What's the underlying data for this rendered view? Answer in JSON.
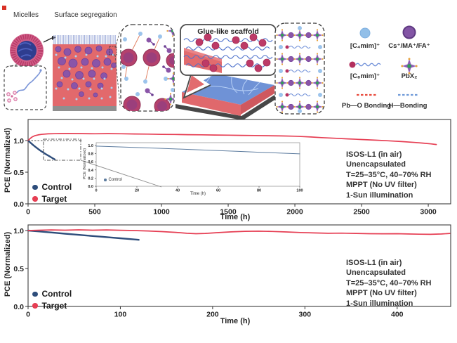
{
  "schematic": {
    "micelles_label": "Micelles",
    "surface_label": "Surface segregation",
    "scaffold_label": "Glue-like scaffold",
    "legend": [
      {
        "icon": "c4mim-icon",
        "label": "[C₄mim]⁺"
      },
      {
        "icon": "cation-icon",
        "label": "Cs⁺/MA⁺/FA⁺"
      },
      {
        "icon": "c8mim-icon",
        "label": "[C₈mim]⁺"
      },
      {
        "icon": "pbx2-icon",
        "label": "PbX₂"
      },
      {
        "icon": "pb-o-bond-icon",
        "label": "Pb—O Bonding"
      },
      {
        "icon": "h-bond-icon",
        "label": "H—Bonding"
      }
    ],
    "colors": {
      "c4mim": "#92bfe8",
      "cation": "#8355a5",
      "c8mim": "#b3305e",
      "pbo_bond": "#e8483a",
      "h_bond": "#6f9ad8",
      "film_red": "#e2696c",
      "scaffold_wave": "#5073cc",
      "perovskite_blue": "#6f92d6"
    }
  },
  "chart_data": [
    {
      "id": "main-stability",
      "type": "line",
      "xlabel": "Time (h)",
      "ylabel": "PCE (Normalized)",
      "xlim": [
        0,
        3168
      ],
      "ylim": [
        0,
        1.333
      ],
      "xticks": [
        0,
        500,
        1000,
        1500,
        2000,
        2500,
        3000
      ],
      "yticks": [
        0,
        0.5,
        1.0
      ],
      "grid": false,
      "legend_position": "lower left",
      "annotation": [
        "ISOS-L1 (in air)",
        "Unencapsulated",
        "T=25–35°C, 40–70% RH",
        "MPPT (No UV filter)",
        "1-Sun illumination"
      ],
      "series": [
        {
          "name": "Control",
          "color": "#2e4d7b",
          "width": 2.4,
          "x": [
            0,
            20,
            40,
            60,
            80,
            100,
            120,
            140,
            160,
            180,
            200
          ],
          "y": [
            1.0,
            0.962,
            0.925,
            0.892,
            0.86,
            0.83,
            0.802,
            0.776,
            0.752,
            0.727,
            0.702
          ]
        },
        {
          "name": "Target",
          "color": "#e63e53",
          "width": 1.7,
          "x": [
            0,
            15,
            30,
            50,
            75,
            100,
            150,
            200,
            250,
            300,
            400,
            500,
            600,
            700,
            800,
            900,
            1000,
            1100,
            1200,
            1300,
            1400,
            1500,
            1600,
            1700,
            1800,
            1900,
            2000,
            2060,
            2120,
            2200,
            2300,
            2400,
            2500,
            2600,
            2700,
            2800,
            2900,
            2960,
            3020,
            3060
          ],
          "y": [
            1.0,
            1.032,
            1.056,
            1.076,
            1.09,
            1.098,
            1.106,
            1.109,
            1.111,
            1.112,
            1.11,
            1.108,
            1.11,
            1.107,
            1.104,
            1.102,
            1.098,
            1.096,
            1.093,
            1.091,
            1.088,
            1.085,
            1.082,
            1.08,
            1.076,
            1.073,
            1.069,
            1.063,
            1.056,
            1.046,
            1.036,
            1.026,
            1.016,
            1.006,
            0.996,
            0.984,
            0.97,
            0.96,
            0.948,
            0.938
          ]
        }
      ]
    },
    {
      "id": "inset-control-zoom",
      "type": "line",
      "xlabel": "Time (h)",
      "ylabel": "PCE (Normalized)",
      "xlim": [
        0,
        100
      ],
      "ylim": [
        0,
        1.069
      ],
      "xticks": [
        0,
        20,
        40,
        60,
        80,
        100
      ],
      "yticks": [
        0,
        0.2,
        0.4,
        0.6,
        0.8,
        1.0
      ],
      "grid": false,
      "legend_position": "lower left",
      "series": [
        {
          "name": "Control",
          "color": "#5c7b9e",
          "width": 1,
          "x": [
            0,
            10,
            20,
            30,
            40,
            50,
            60,
            70,
            80,
            90,
            100
          ],
          "y": [
            0.985,
            0.968,
            0.95,
            0.932,
            0.913,
            0.894,
            0.875,
            0.855,
            0.835,
            0.815,
            0.795
          ]
        }
      ]
    },
    {
      "id": "bottom-stability",
      "type": "line",
      "xlabel": "Time (h)",
      "ylabel": "PCE (Normalized)",
      "xlim": [
        0,
        458
      ],
      "ylim": [
        0,
        1.074
      ],
      "xticks": [
        0,
        100,
        200,
        300,
        400
      ],
      "yticks": [
        0,
        0.5,
        1.0
      ],
      "grid": false,
      "legend_position": "lower left",
      "annotation": [
        "ISOS-L1 (in air)",
        "Unencapsulated",
        "T=25–35°C, 40–70% RH",
        "MPPT (No UV filter)",
        "1-Sun illumination"
      ],
      "series": [
        {
          "name": "Control",
          "color": "#2e4d7b",
          "width": 2.4,
          "x": [
            0,
            10,
            20,
            30,
            40,
            50,
            60,
            70,
            80,
            90,
            100,
            110,
            120
          ],
          "y": [
            1.0,
            0.99,
            0.98,
            0.969,
            0.958,
            0.948,
            0.938,
            0.928,
            0.918,
            0.908,
            0.898,
            0.888,
            0.878
          ]
        },
        {
          "name": "Target",
          "color": "#e63e53",
          "width": 1.7,
          "x": [
            0,
            10,
            25,
            40,
            55,
            70,
            85,
            100,
            115,
            130,
            145,
            160,
            172,
            182,
            192,
            205,
            220,
            235,
            250,
            265,
            280,
            295,
            310,
            325,
            340,
            355,
            370,
            385,
            400,
            412,
            424,
            436,
            448,
            457
          ],
          "y": [
            1.0,
            1.004,
            1.008,
            1.005,
            1.009,
            1.005,
            1.008,
            1.004,
            1.0,
            0.994,
            0.986,
            0.976,
            0.964,
            0.958,
            0.962,
            0.972,
            0.982,
            0.99,
            0.992,
            0.988,
            0.981,
            0.974,
            0.968,
            0.964,
            0.966,
            0.962,
            0.958,
            0.957,
            0.958,
            0.955,
            0.952,
            0.95,
            0.955,
            0.962
          ]
        }
      ]
    }
  ]
}
